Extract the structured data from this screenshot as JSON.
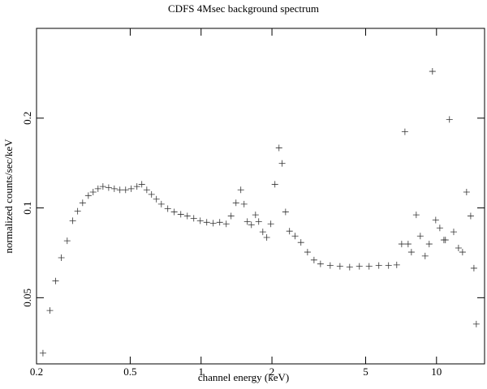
{
  "chart_data": {
    "type": "scatter",
    "title": "CDFS 4Msec background spectrum",
    "x_label": "channel energy (keV)",
    "y_label": "normalized counts/sec/keV",
    "xscale": "log",
    "yscale": "log",
    "marker": "cross",
    "color": "#333333",
    "xlim": [
      0.2,
      16
    ],
    "ylim": [
      0.03,
      0.4
    ],
    "xticks": [
      0.2,
      0.5,
      1,
      2,
      5,
      10
    ],
    "yticks": [
      0.05,
      0.1,
      0.2
    ],
    "x": [
      0.213,
      0.228,
      0.241,
      0.255,
      0.27,
      0.285,
      0.299,
      0.314,
      0.332,
      0.348,
      0.365,
      0.383,
      0.405,
      0.428,
      0.452,
      0.478,
      0.505,
      0.534,
      0.56,
      0.588,
      0.616,
      0.646,
      0.678,
      0.722,
      0.769,
      0.82,
      0.874,
      0.931,
      0.992,
      1.057,
      1.126,
      1.2,
      1.279,
      1.341,
      1.407,
      1.475,
      1.523,
      1.572,
      1.636,
      1.703,
      1.757,
      1.829,
      1.901,
      1.978,
      2.059,
      2.143,
      2.209,
      2.285,
      2.375,
      2.508,
      2.655,
      2.832,
      3.018,
      3.215,
      3.536,
      3.89,
      4.277,
      4.703,
      5.172,
      5.688,
      6.256,
      6.777,
      7.112,
      7.343,
      7.578,
      7.823,
      8.203,
      8.535,
      8.948,
      9.31,
      9.612,
      9.923,
      10.33,
      10.75,
      10.91,
      11.35,
      11.83,
      12.4,
      12.9,
      13.42,
      13.97,
      14.42,
      14.76
    ],
    "values": [
      0.0326,
      0.0453,
      0.0569,
      0.0681,
      0.0776,
      0.0906,
      0.0975,
      0.104,
      0.11,
      0.113,
      0.116,
      0.118,
      0.117,
      0.116,
      0.115,
      0.115,
      0.116,
      0.118,
      0.12,
      0.115,
      0.111,
      0.107,
      0.103,
      0.0994,
      0.097,
      0.0952,
      0.094,
      0.0923,
      0.0906,
      0.0895,
      0.0889,
      0.0895,
      0.0884,
      0.094,
      0.104,
      0.115,
      0.103,
      0.09,
      0.0878,
      0.0948,
      0.09,
      0.0831,
      0.0796,
      0.0884,
      0.12,
      0.159,
      0.141,
      0.097,
      0.0836,
      0.0805,
      0.0766,
      0.0711,
      0.0669,
      0.0649,
      0.0641,
      0.0637,
      0.0633,
      0.0637,
      0.0637,
      0.0641,
      0.0641,
      0.0644,
      0.0757,
      0.18,
      0.0757,
      0.0711,
      0.0948,
      0.0805,
      0.069,
      0.0757,
      0.287,
      0.0911,
      0.0857,
      0.0781,
      0.0781,
      0.198,
      0.0831,
      0.0734,
      0.0711,
      0.113,
      0.094,
      0.0628,
      0.0408
    ]
  }
}
